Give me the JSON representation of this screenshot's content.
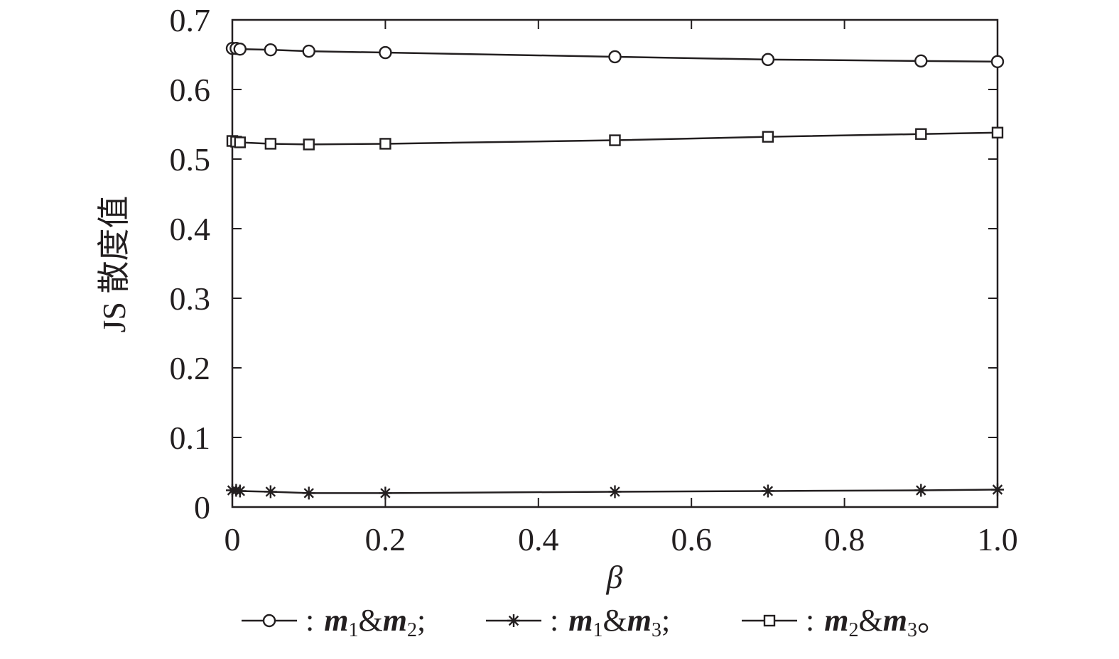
{
  "chart_data": {
    "type": "line",
    "xlabel": "β",
    "ylabel": "JS 散度值",
    "xlim": [
      0,
      1.0
    ],
    "ylim": [
      0,
      0.7
    ],
    "x_ticks": [
      "0",
      "0.2",
      "0.4",
      "0.6",
      "0.8",
      "1.0"
    ],
    "y_ticks": [
      "0",
      "0.1",
      "0.2",
      "0.3",
      "0.4",
      "0.5",
      "0.6",
      "0.7"
    ],
    "x": [
      0,
      0.005,
      0.01,
      0.05,
      0.1,
      0.2,
      0.5,
      0.7,
      0.9,
      1.0
    ],
    "series": [
      {
        "marker": "circle",
        "values": [
          0.659,
          0.659,
          0.658,
          0.657,
          0.655,
          0.653,
          0.647,
          0.643,
          0.641,
          0.64
        ]
      },
      {
        "marker": "star",
        "values": [
          0.024,
          0.024,
          0.023,
          0.022,
          0.02,
          0.02,
          0.022,
          0.023,
          0.024,
          0.025
        ]
      },
      {
        "marker": "square",
        "values": [
          0.526,
          0.525,
          0.524,
          0.522,
          0.521,
          0.522,
          0.527,
          0.532,
          0.536,
          0.538
        ]
      }
    ],
    "legend": {
      "position": "bottom",
      "entries": [
        {
          "marker": "circle",
          "sep": ":",
          "a": "m",
          "a_sub": "1",
          "amp": "&",
          "b": "m",
          "b_sub": "2",
          "end": ";"
        },
        {
          "marker": "star",
          "sep": ":",
          "a": "m",
          "a_sub": "1",
          "amp": "&",
          "b": "m",
          "b_sub": "3",
          "end": ";"
        },
        {
          "marker": "square",
          "sep": ":",
          "a": "m",
          "a_sub": "2",
          "amp": "&",
          "b": "m",
          "b_sub": "3",
          "end": "。"
        }
      ]
    },
    "colors": {
      "line": "#231f20",
      "background": "#ffffff"
    },
    "grid": false
  }
}
